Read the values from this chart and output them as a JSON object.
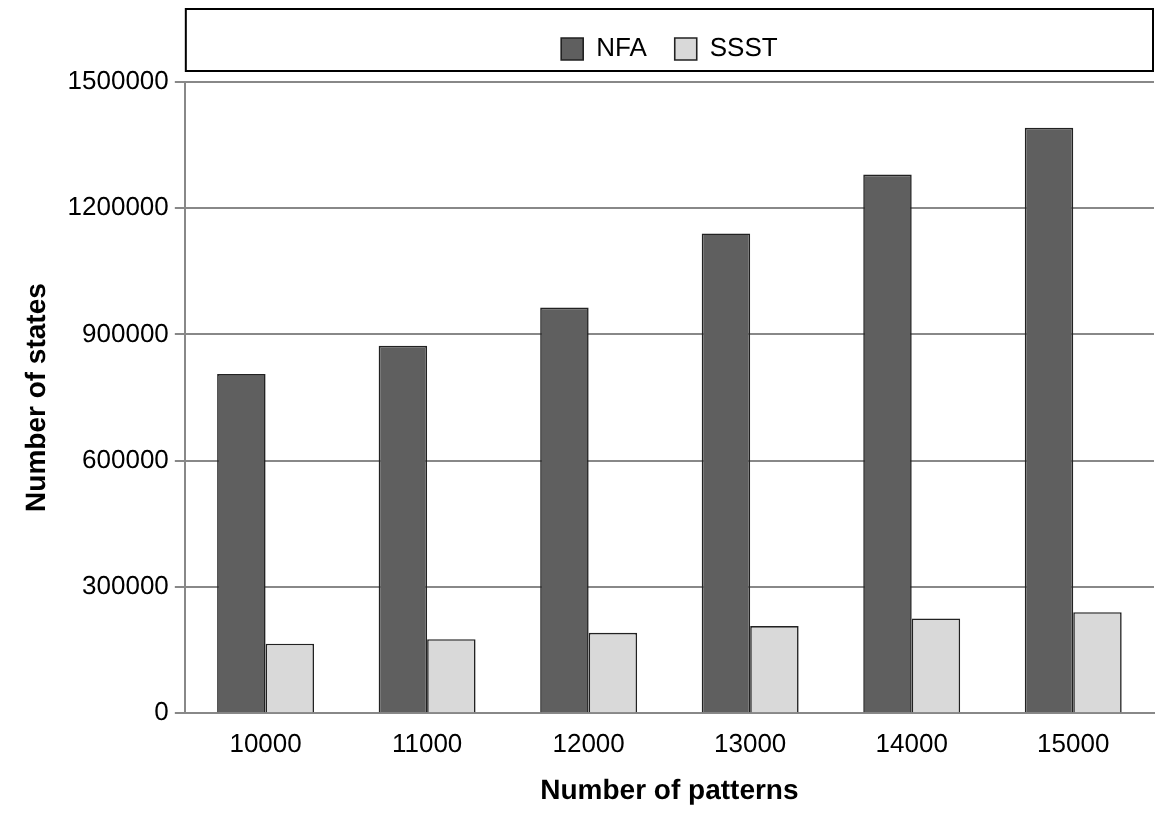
{
  "chart_data": {
    "type": "bar",
    "xlabel": "Number of patterns",
    "ylabel": "Number of states",
    "categories": [
      "10000",
      "11000",
      "12000",
      "13000",
      "14000",
      "15000"
    ],
    "series": [
      {
        "name": "NFA",
        "color": "#5f5f5f",
        "values": [
          806000,
          873000,
          964000,
          1140000,
          1280000,
          1391000
        ]
      },
      {
        "name": "SSST",
        "color": "#d9d9d9",
        "values": [
          165000,
          176000,
          191000,
          207000,
          225000,
          240000
        ]
      }
    ],
    "ylim": [
      0,
      1500000
    ],
    "yticks": [
      0,
      300000,
      600000,
      900000,
      1200000,
      1500000
    ],
    "grid": "y",
    "legend": "top"
  }
}
